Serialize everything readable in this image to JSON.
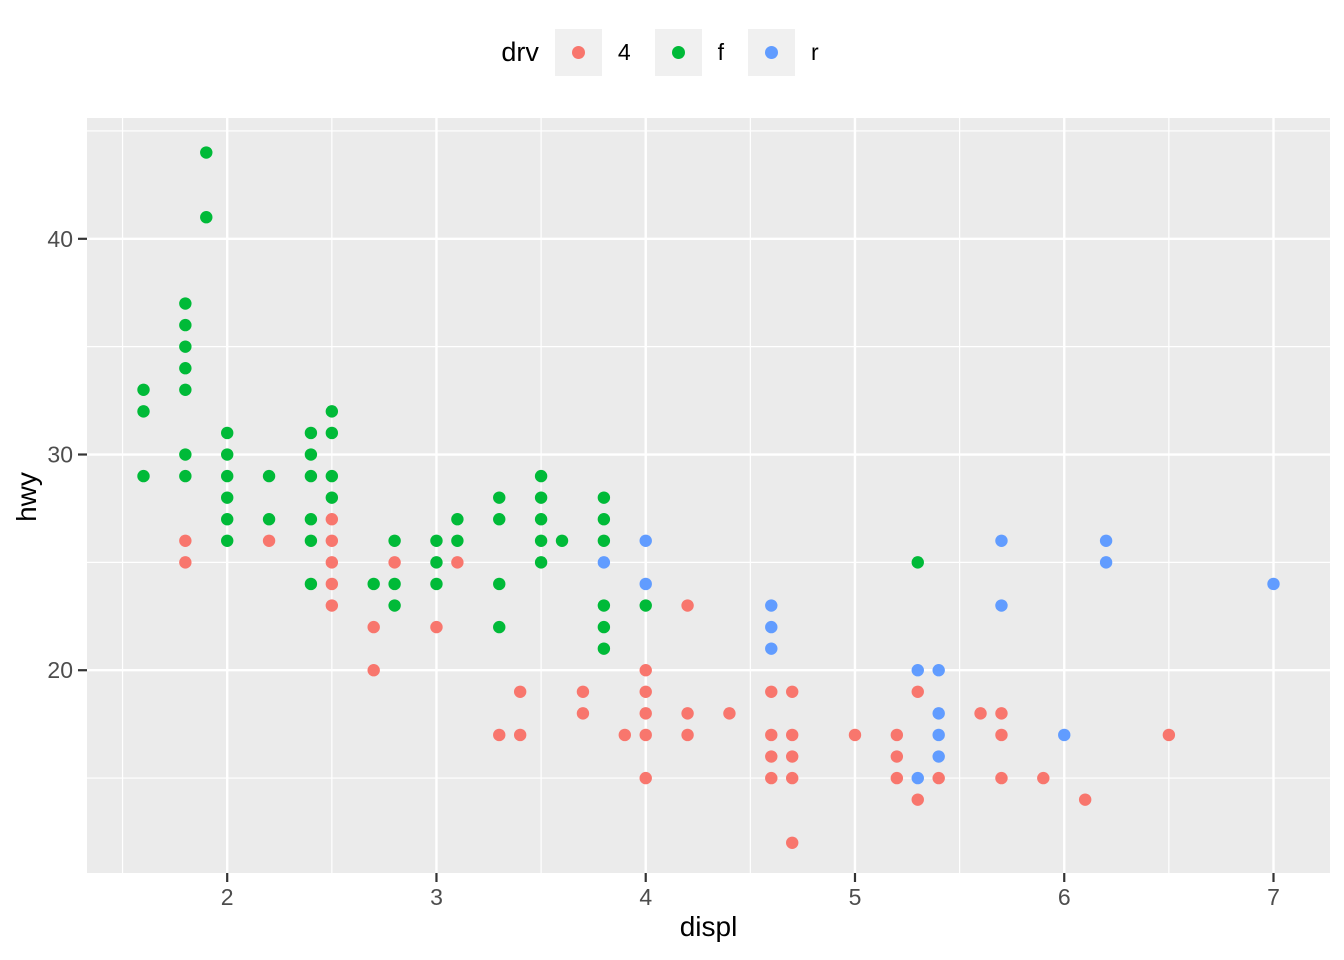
{
  "legend": {
    "title": "drv"
  },
  "style": {
    "background": "#FFFFFF",
    "panel_bg": "#EBEBEB",
    "grid_color": "#FFFFFF",
    "tick_label_color": "#4D4D4D",
    "tick_mark_color": "#333333",
    "axis_title_color": "#000000",
    "legend_key_bg": "#F0F0F0",
    "series_colors": {
      "4": "#F8766D",
      "f": "#00BA38",
      "r": "#619CFF"
    }
  },
  "chart_data": {
    "type": "scatter",
    "xlabel": "displ",
    "ylabel": "hwy",
    "legend_title": "drv",
    "legend_position": "top",
    "grid": true,
    "x_axis": {
      "ticks": [
        2,
        3,
        4,
        5,
        6,
        7
      ],
      "minor_ticks": [
        1.5,
        2.5,
        3.5,
        4.5,
        5.5,
        6.5
      ],
      "range": [
        1.33,
        7.27
      ]
    },
    "y_axis": {
      "ticks": [
        20,
        30,
        40
      ],
      "minor_ticks": [
        15,
        25,
        35,
        45
      ],
      "range": [
        10.6,
        45.6
      ]
    },
    "series": [
      {
        "name": "4",
        "color": "#F8766D",
        "points": [
          [
            1.8,
            25
          ],
          [
            1.8,
            26
          ],
          [
            2.2,
            26
          ],
          [
            2.5,
            23
          ],
          [
            2.5,
            24
          ],
          [
            2.5,
            25
          ],
          [
            2.5,
            26
          ],
          [
            2.5,
            27
          ],
          [
            2.7,
            20
          ],
          [
            2.7,
            22
          ],
          [
            2.8,
            25
          ],
          [
            3.0,
            22
          ],
          [
            3.1,
            25
          ],
          [
            3.3,
            17
          ],
          [
            3.4,
            17
          ],
          [
            3.4,
            19
          ],
          [
            3.7,
            18
          ],
          [
            3.7,
            19
          ],
          [
            3.9,
            17
          ],
          [
            4.0,
            15
          ],
          [
            4.0,
            17
          ],
          [
            4.0,
            18
          ],
          [
            4.0,
            19
          ],
          [
            4.0,
            20
          ],
          [
            4.2,
            17
          ],
          [
            4.2,
            18
          ],
          [
            4.2,
            23
          ],
          [
            4.4,
            18
          ],
          [
            4.6,
            15
          ],
          [
            4.6,
            16
          ],
          [
            4.6,
            17
          ],
          [
            4.6,
            19
          ],
          [
            4.7,
            12
          ],
          [
            4.7,
            15
          ],
          [
            4.7,
            16
          ],
          [
            4.7,
            17
          ],
          [
            4.7,
            19
          ],
          [
            5.0,
            17
          ],
          [
            5.2,
            15
          ],
          [
            5.2,
            16
          ],
          [
            5.2,
            17
          ],
          [
            5.3,
            14
          ],
          [
            5.3,
            19
          ],
          [
            5.4,
            15
          ],
          [
            5.6,
            18
          ],
          [
            5.7,
            15
          ],
          [
            5.7,
            17
          ],
          [
            5.7,
            18
          ],
          [
            5.9,
            15
          ],
          [
            6.1,
            14
          ],
          [
            6.5,
            17
          ]
        ]
      },
      {
        "name": "f",
        "color": "#00BA38",
        "points": [
          [
            1.6,
            29
          ],
          [
            1.6,
            32
          ],
          [
            1.6,
            33
          ],
          [
            1.8,
            29
          ],
          [
            1.8,
            30
          ],
          [
            1.8,
            33
          ],
          [
            1.8,
            34
          ],
          [
            1.8,
            35
          ],
          [
            1.8,
            36
          ],
          [
            1.8,
            37
          ],
          [
            1.9,
            41
          ],
          [
            1.9,
            44
          ],
          [
            2.0,
            26
          ],
          [
            2.0,
            27
          ],
          [
            2.0,
            28
          ],
          [
            2.0,
            29
          ],
          [
            2.0,
            30
          ],
          [
            2.0,
            31
          ],
          [
            2.2,
            27
          ],
          [
            2.2,
            29
          ],
          [
            2.4,
            24
          ],
          [
            2.4,
            26
          ],
          [
            2.4,
            27
          ],
          [
            2.4,
            29
          ],
          [
            2.4,
            30
          ],
          [
            2.4,
            31
          ],
          [
            2.5,
            28
          ],
          [
            2.5,
            29
          ],
          [
            2.5,
            31
          ],
          [
            2.5,
            32
          ],
          [
            2.7,
            24
          ],
          [
            2.8,
            23
          ],
          [
            2.8,
            24
          ],
          [
            2.8,
            26
          ],
          [
            3.0,
            24
          ],
          [
            3.0,
            25
          ],
          [
            3.0,
            26
          ],
          [
            3.1,
            26
          ],
          [
            3.1,
            27
          ],
          [
            3.3,
            22
          ],
          [
            3.3,
            24
          ],
          [
            3.3,
            27
          ],
          [
            3.3,
            28
          ],
          [
            3.5,
            25
          ],
          [
            3.5,
            26
          ],
          [
            3.5,
            27
          ],
          [
            3.5,
            28
          ],
          [
            3.5,
            29
          ],
          [
            3.6,
            26
          ],
          [
            3.8,
            21
          ],
          [
            3.8,
            22
          ],
          [
            3.8,
            23
          ],
          [
            3.8,
            26
          ],
          [
            3.8,
            27
          ],
          [
            3.8,
            28
          ],
          [
            4.0,
            23
          ],
          [
            5.3,
            25
          ]
        ]
      },
      {
        "name": "r",
        "color": "#619CFF",
        "points": [
          [
            3.8,
            25
          ],
          [
            4.0,
            24
          ],
          [
            4.0,
            26
          ],
          [
            4.6,
            21
          ],
          [
            4.6,
            22
          ],
          [
            4.6,
            23
          ],
          [
            5.3,
            15
          ],
          [
            5.3,
            20
          ],
          [
            5.4,
            16
          ],
          [
            5.4,
            17
          ],
          [
            5.4,
            18
          ],
          [
            5.4,
            20
          ],
          [
            5.7,
            23
          ],
          [
            5.7,
            26
          ],
          [
            6.0,
            17
          ],
          [
            6.2,
            25
          ],
          [
            6.2,
            26
          ],
          [
            7.0,
            24
          ]
        ]
      }
    ]
  }
}
